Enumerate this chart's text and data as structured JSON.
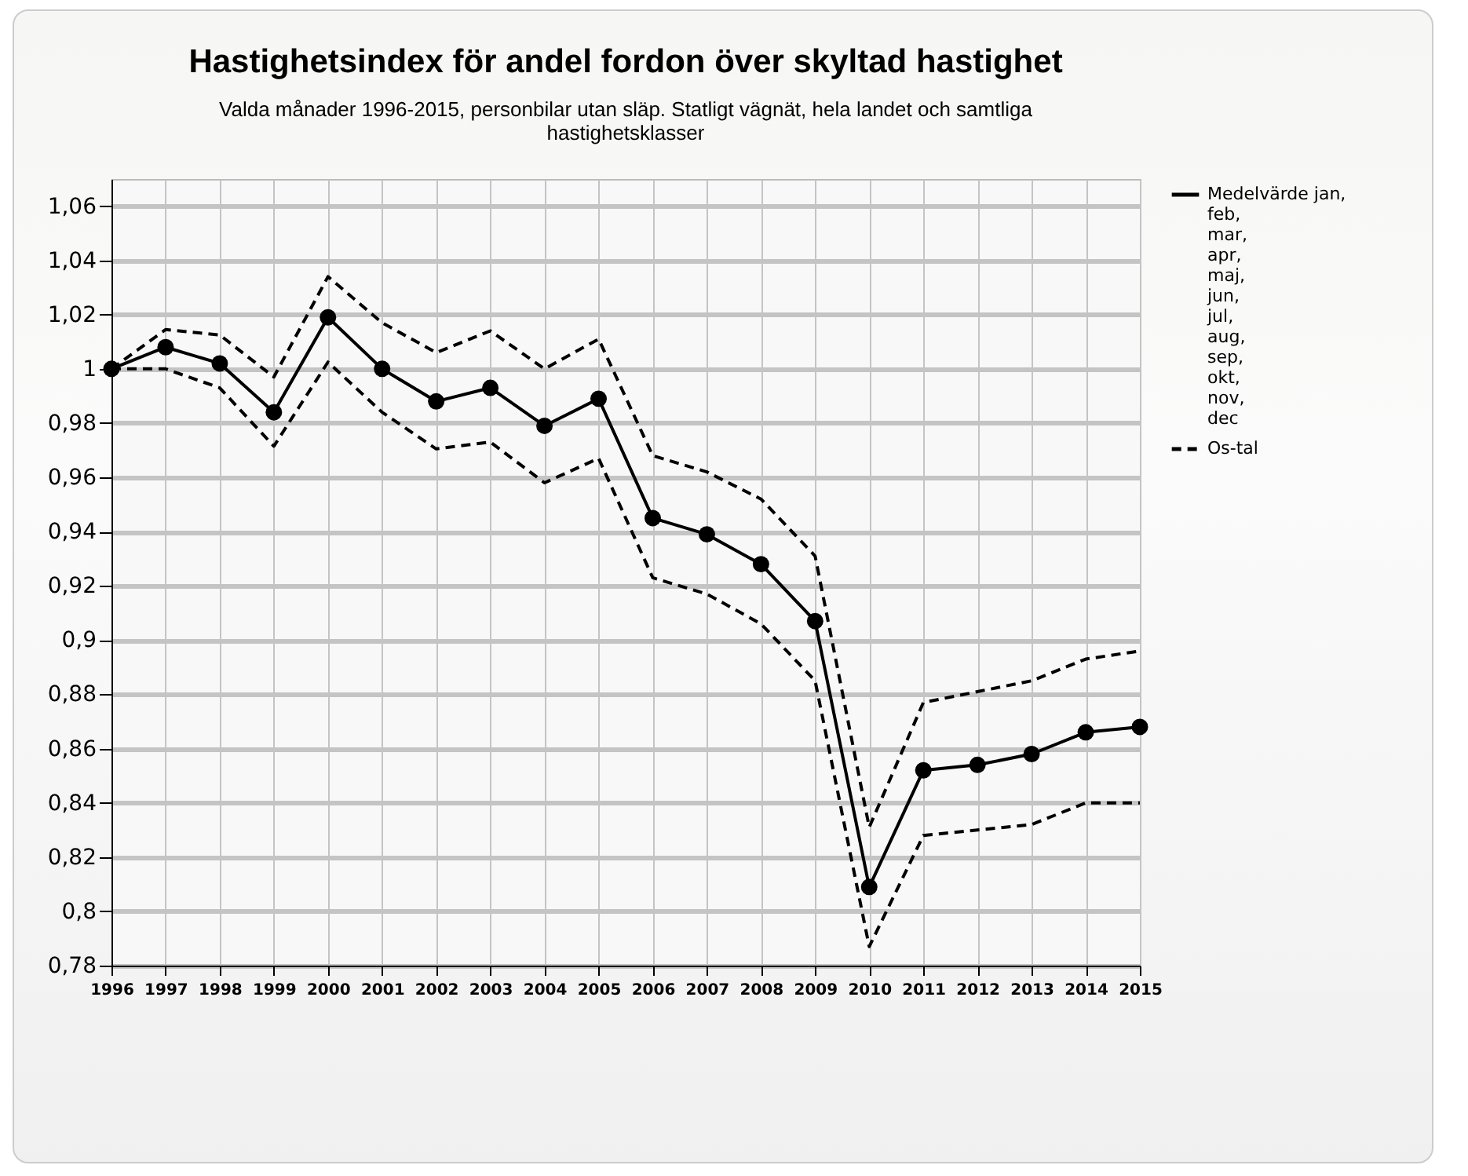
{
  "chart_data": {
    "type": "line",
    "title": "Hastighetsindex för andel fordon över skyltad hastighet",
    "subtitle": "Valda månader 1996-2015, personbilar utan släp. Statligt vägnät, hela landet och samtliga hastighetsklasser",
    "x": [
      1996,
      1997,
      1998,
      1999,
      2000,
      2001,
      2002,
      2003,
      2004,
      2005,
      2006,
      2007,
      2008,
      2009,
      2010,
      2011,
      2012,
      2013,
      2014,
      2015
    ],
    "xlim": [
      1996,
      2015
    ],
    "xticks": [
      1996,
      1997,
      1998,
      1999,
      2000,
      2001,
      2002,
      2003,
      2004,
      2005,
      2006,
      2007,
      2008,
      2009,
      2010,
      2011,
      2012,
      2013,
      2014,
      2015
    ],
    "ylim": [
      0.78,
      1.07
    ],
    "yticks": [
      {
        "value": 0.78,
        "label": "0,78"
      },
      {
        "value": 0.8,
        "label": "0,8"
      },
      {
        "value": 0.82,
        "label": "0,82"
      },
      {
        "value": 0.84,
        "label": "0,84"
      },
      {
        "value": 0.86,
        "label": "0,86"
      },
      {
        "value": 0.88,
        "label": "0,88"
      },
      {
        "value": 0.9,
        "label": "0,9"
      },
      {
        "value": 0.92,
        "label": "0,92"
      },
      {
        "value": 0.94,
        "label": "0,94"
      },
      {
        "value": 0.96,
        "label": "0,96"
      },
      {
        "value": 0.98,
        "label": "0,98"
      },
      {
        "value": 1,
        "label": "1"
      },
      {
        "value": 1.02,
        "label": "1,02"
      },
      {
        "value": 1.04,
        "label": "1,04"
      },
      {
        "value": 1.06,
        "label": "1,06"
      }
    ],
    "grid": true,
    "legend": "right",
    "series": [
      {
        "name": "Medelvärde jan, feb, mar, apr, maj, jun, jul, aug, sep, okt, nov, dec",
        "color": "#000000",
        "marker": "circle",
        "line_style": "solid",
        "values": [
          1.0,
          1.008,
          1.002,
          0.984,
          1.019,
          1.0,
          0.988,
          0.993,
          0.979,
          0.989,
          0.945,
          0.939,
          0.928,
          0.907,
          0.809,
          0.852,
          0.854,
          0.858,
          0.866,
          0.868
        ]
      },
      {
        "name": "Os-tal",
        "color": "#000000",
        "marker": "none",
        "line_style": "dashed",
        "values": [
          1.0,
          1.0145,
          1.0125,
          0.997,
          1.034,
          1.017,
          1.006,
          1.014,
          1.0,
          1.011,
          0.968,
          0.962,
          0.952,
          0.931,
          0.831,
          0.877,
          0.881,
          0.885,
          0.893,
          0.896
        ]
      },
      {
        "color": "#000000",
        "marker": "none",
        "line_style": "dashed",
        "values": [
          1.0,
          1.0,
          0.993,
          0.9715,
          1.0025,
          0.984,
          0.9705,
          0.973,
          0.958,
          0.967,
          0.923,
          0.917,
          0.906,
          0.885,
          0.787,
          0.828,
          0.83,
          0.832,
          0.84,
          0.84
        ]
      }
    ]
  }
}
